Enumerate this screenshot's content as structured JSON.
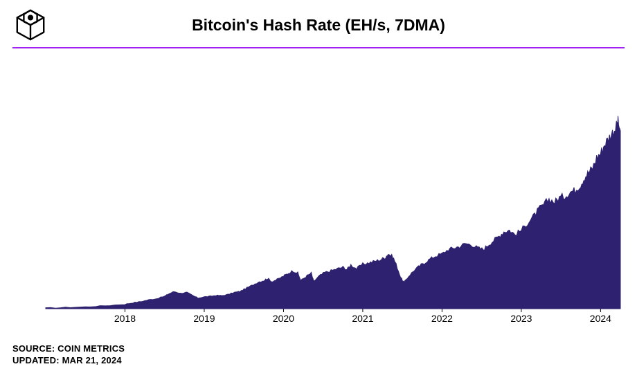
{
  "chart": {
    "type": "area",
    "title": "Bitcoin's Hash Rate (EH/s, 7DMA)",
    "background_color": "#ffffff",
    "accent_line_color": "#a020f0",
    "area_fill_color": "#2e2270",
    "area_stroke_color": "#2e2270",
    "axis_text_color": "#000000",
    "title_fontsize": 23,
    "label_fontsize": 14,
    "ylim": [
      0,
      850
    ],
    "ytick_step": 200,
    "yticks": [
      0,
      200,
      400,
      600,
      800
    ],
    "xlim": [
      2017.0,
      2024.25
    ],
    "xticks": [
      2018,
      2019,
      2020,
      2021,
      2022,
      2023,
      2024
    ],
    "series": [
      {
        "x": 2017.0,
        "y": 2
      },
      {
        "x": 2017.25,
        "y": 4
      },
      {
        "x": 2017.5,
        "y": 6
      },
      {
        "x": 2017.75,
        "y": 10
      },
      {
        "x": 2018.0,
        "y": 15
      },
      {
        "x": 2018.1,
        "y": 20
      },
      {
        "x": 2018.2,
        "y": 24
      },
      {
        "x": 2018.3,
        "y": 30
      },
      {
        "x": 2018.4,
        "y": 34
      },
      {
        "x": 2018.5,
        "y": 42
      },
      {
        "x": 2018.55,
        "y": 50
      },
      {
        "x": 2018.62,
        "y": 58
      },
      {
        "x": 2018.7,
        "y": 52
      },
      {
        "x": 2018.78,
        "y": 55
      },
      {
        "x": 2018.85,
        "y": 45
      },
      {
        "x": 2018.92,
        "y": 36
      },
      {
        "x": 2019.0,
        "y": 40
      },
      {
        "x": 2019.08,
        "y": 42
      },
      {
        "x": 2019.15,
        "y": 45
      },
      {
        "x": 2019.22,
        "y": 44
      },
      {
        "x": 2019.3,
        "y": 48
      },
      {
        "x": 2019.38,
        "y": 55
      },
      {
        "x": 2019.45,
        "y": 58
      },
      {
        "x": 2019.52,
        "y": 68
      },
      {
        "x": 2019.6,
        "y": 78
      },
      {
        "x": 2019.68,
        "y": 90
      },
      {
        "x": 2019.75,
        "y": 95
      },
      {
        "x": 2019.8,
        "y": 102
      },
      {
        "x": 2019.85,
        "y": 92
      },
      {
        "x": 2019.92,
        "y": 98
      },
      {
        "x": 2020.0,
        "y": 110
      },
      {
        "x": 2020.05,
        "y": 118
      },
      {
        "x": 2020.12,
        "y": 128
      },
      {
        "x": 2020.18,
        "y": 120
      },
      {
        "x": 2020.22,
        "y": 95
      },
      {
        "x": 2020.28,
        "y": 108
      },
      {
        "x": 2020.35,
        "y": 120
      },
      {
        "x": 2020.38,
        "y": 92
      },
      {
        "x": 2020.45,
        "y": 110
      },
      {
        "x": 2020.52,
        "y": 122
      },
      {
        "x": 2020.6,
        "y": 128
      },
      {
        "x": 2020.68,
        "y": 135
      },
      {
        "x": 2020.75,
        "y": 140
      },
      {
        "x": 2020.8,
        "y": 132
      },
      {
        "x": 2020.85,
        "y": 148
      },
      {
        "x": 2020.92,
        "y": 135
      },
      {
        "x": 2021.0,
        "y": 150
      },
      {
        "x": 2021.08,
        "y": 155
      },
      {
        "x": 2021.15,
        "y": 160
      },
      {
        "x": 2021.22,
        "y": 165
      },
      {
        "x": 2021.28,
        "y": 172
      },
      {
        "x": 2021.32,
        "y": 185
      },
      {
        "x": 2021.38,
        "y": 175
      },
      {
        "x": 2021.42,
        "y": 150
      },
      {
        "x": 2021.48,
        "y": 105
      },
      {
        "x": 2021.52,
        "y": 88
      },
      {
        "x": 2021.58,
        "y": 110
      },
      {
        "x": 2021.65,
        "y": 130
      },
      {
        "x": 2021.72,
        "y": 145
      },
      {
        "x": 2021.78,
        "y": 155
      },
      {
        "x": 2021.85,
        "y": 168
      },
      {
        "x": 2021.92,
        "y": 178
      },
      {
        "x": 2022.0,
        "y": 185
      },
      {
        "x": 2022.08,
        "y": 200
      },
      {
        "x": 2022.15,
        "y": 205
      },
      {
        "x": 2022.22,
        "y": 210
      },
      {
        "x": 2022.3,
        "y": 220
      },
      {
        "x": 2022.38,
        "y": 215
      },
      {
        "x": 2022.45,
        "y": 205
      },
      {
        "x": 2022.52,
        "y": 200
      },
      {
        "x": 2022.58,
        "y": 215
      },
      {
        "x": 2022.65,
        "y": 230
      },
      {
        "x": 2022.72,
        "y": 245
      },
      {
        "x": 2022.78,
        "y": 260
      },
      {
        "x": 2022.85,
        "y": 265
      },
      {
        "x": 2022.92,
        "y": 250
      },
      {
        "x": 2023.0,
        "y": 265
      },
      {
        "x": 2023.08,
        "y": 290
      },
      {
        "x": 2023.15,
        "y": 310
      },
      {
        "x": 2023.22,
        "y": 335
      },
      {
        "x": 2023.28,
        "y": 350
      },
      {
        "x": 2023.35,
        "y": 370
      },
      {
        "x": 2023.42,
        "y": 360
      },
      {
        "x": 2023.48,
        "y": 375
      },
      {
        "x": 2023.55,
        "y": 380
      },
      {
        "x": 2023.62,
        "y": 395
      },
      {
        "x": 2023.68,
        "y": 400
      },
      {
        "x": 2023.75,
        "y": 420
      },
      {
        "x": 2023.8,
        "y": 445
      },
      {
        "x": 2023.85,
        "y": 460
      },
      {
        "x": 2023.9,
        "y": 475
      },
      {
        "x": 2023.95,
        "y": 510
      },
      {
        "x": 2024.0,
        "y": 525
      },
      {
        "x": 2024.05,
        "y": 555
      },
      {
        "x": 2024.1,
        "y": 575
      },
      {
        "x": 2024.15,
        "y": 595
      },
      {
        "x": 2024.2,
        "y": 615
      },
      {
        "x": 2024.22,
        "y": 630
      },
      {
        "x": 2024.25,
        "y": 600
      }
    ],
    "noise_amplitude": 10
  },
  "footer": {
    "source_label": "SOURCE: COIN METRICS",
    "updated_label": "UPDATED: MAR 21, 2024"
  }
}
